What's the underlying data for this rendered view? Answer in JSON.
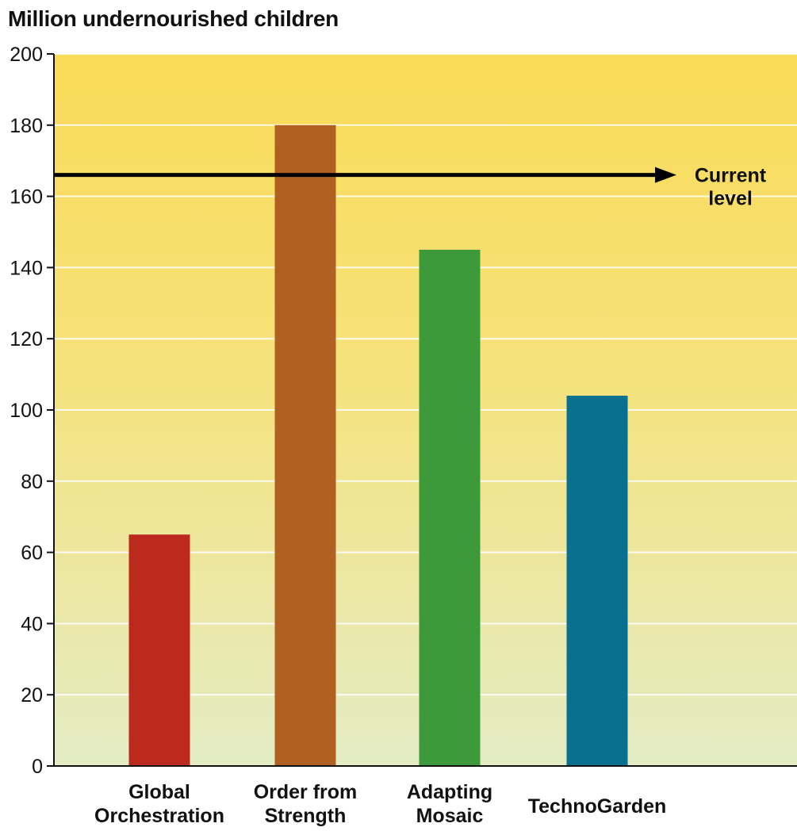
{
  "chart_data": {
    "type": "bar",
    "title": "Million undernourished children",
    "xlabel": "",
    "ylabel": "",
    "ylim": [
      0,
      200
    ],
    "yticks": [
      0,
      20,
      40,
      60,
      80,
      100,
      120,
      140,
      160,
      180,
      200
    ],
    "grid": true,
    "categories": [
      [
        "Global",
        "Orchestration"
      ],
      [
        "Order from",
        "Strength"
      ],
      [
        "Adapting",
        "Mosaic"
      ],
      [
        "TechnoGarden"
      ]
    ],
    "values": [
      65,
      180,
      145,
      104
    ],
    "colors": [
      "#bb2a1c",
      "#b06020",
      "#3d9a3a",
      "#0a7090"
    ],
    "reference_line": {
      "value": 166,
      "label": [
        "Current",
        "level"
      ],
      "color": "#000000"
    },
    "background_gradient": [
      "#fadb57",
      "#e4ecc5"
    ]
  }
}
